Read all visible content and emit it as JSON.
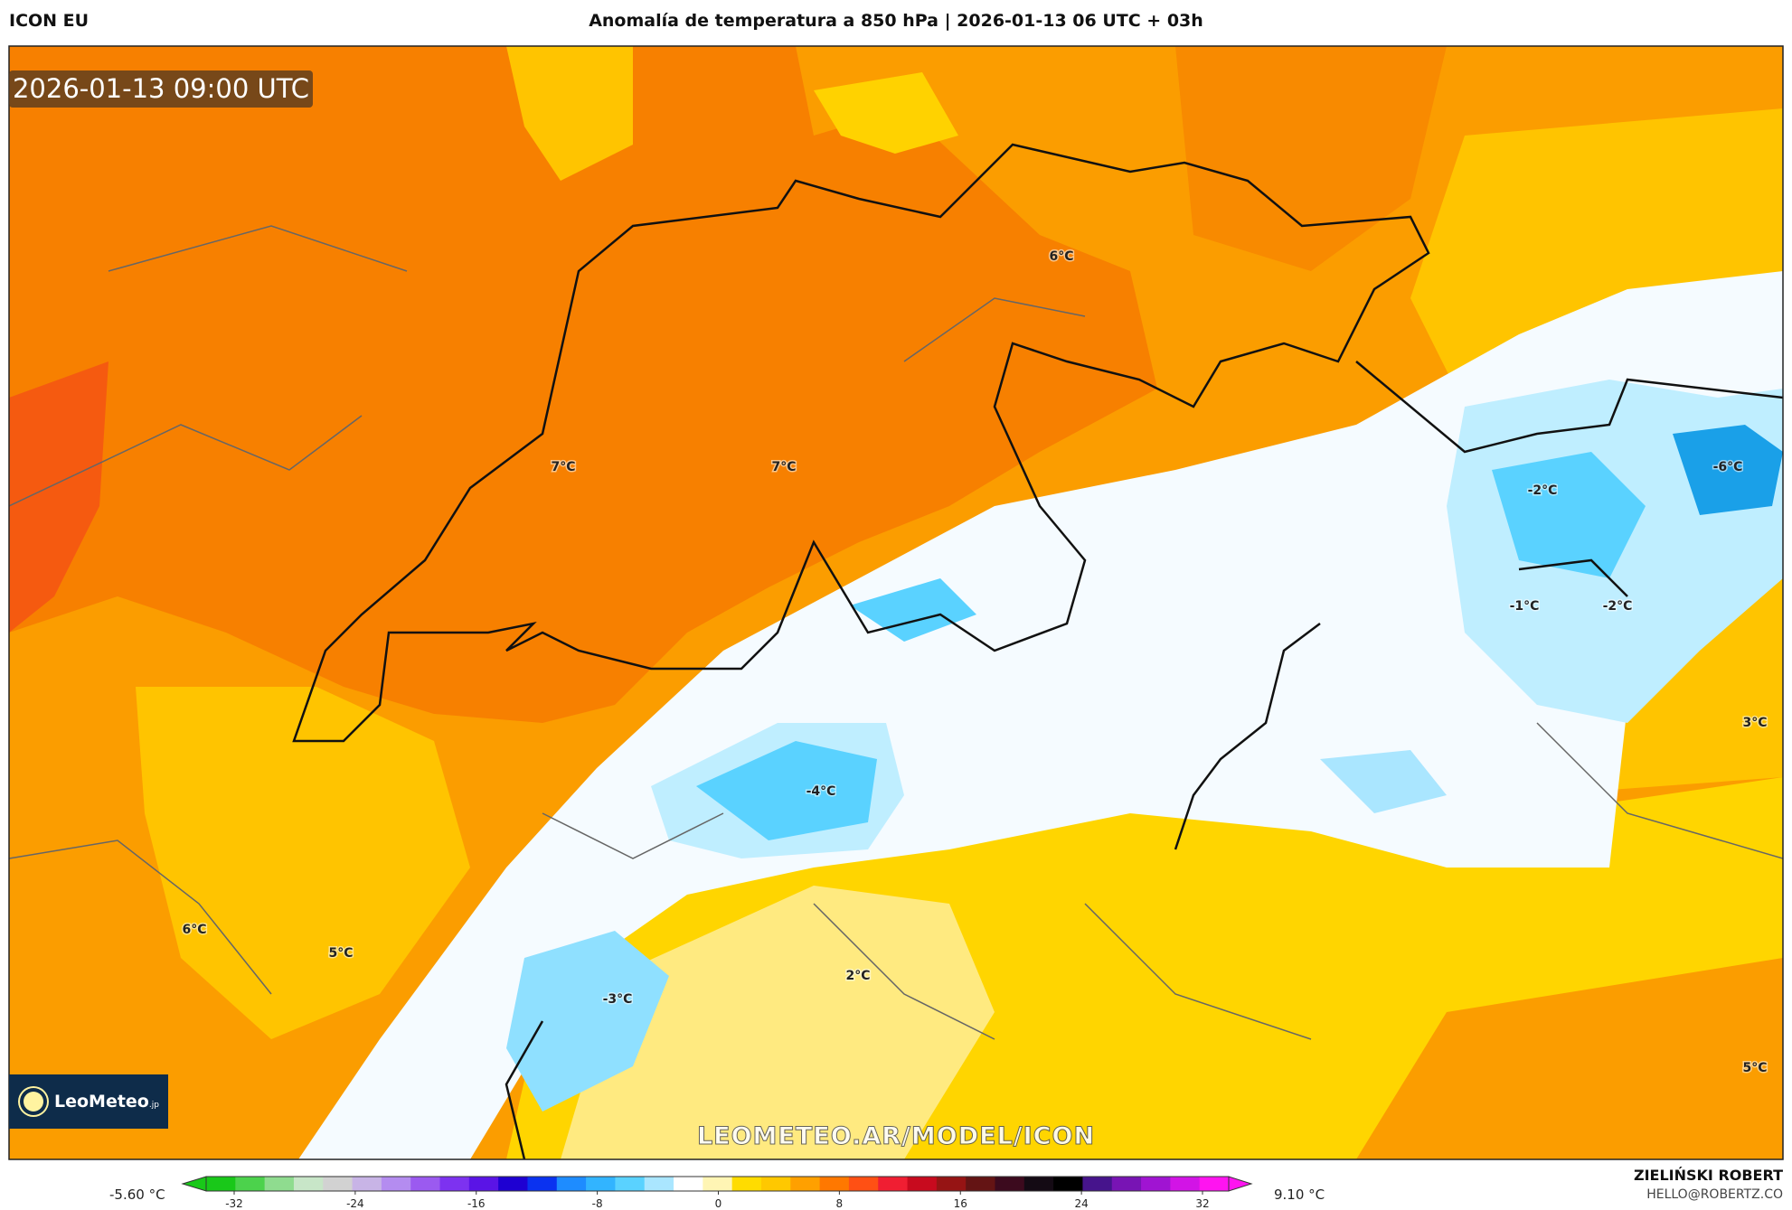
{
  "header": {
    "model": "ICON EU",
    "title": "Anomalía de temperatura a 850 hPa | 2026-01-13 06 UTC + 03h"
  },
  "map": {
    "valid_time": "2026-01-13 09:00 UTC",
    "watermark": "LEOMETEO.AR/MODEL/ICON",
    "logo": {
      "name": "LeoMeteo",
      "suffix": ".jp"
    },
    "temperature_labels": [
      "6°C",
      "7°C",
      "7°C",
      "-6°C",
      "-2°C",
      "-1°C",
      "-2°C",
      "3°C",
      "-4°C",
      "6°C",
      "5°C",
      "2°C",
      "-3°C",
      "5°C"
    ]
  },
  "colorbar": {
    "min_label": "-5.60 °C",
    "max_label": "9.10 °C",
    "ticks": [
      "-32",
      "-24",
      "-16",
      "-8",
      "0",
      "8",
      "16",
      "24",
      "32"
    ],
    "colors": [
      "#19c819",
      "#4cd24c",
      "#8fdc8f",
      "#c8e6c8",
      "#d2d2d2",
      "#c8b4e6",
      "#b48cf0",
      "#9b5af0",
      "#7d32f0",
      "#5a14e6",
      "#1e00d2",
      "#0a32f0",
      "#1e8cff",
      "#32b4ff",
      "#5ad2ff",
      "#aae6ff",
      "#ffffff",
      "#fff5b4",
      "#ffdc00",
      "#ffc800",
      "#ffa000",
      "#ff7800",
      "#ff5014",
      "#f01e32",
      "#c80a1e",
      "#961414",
      "#641414",
      "#3c0a1e",
      "#140a14",
      "#000000",
      "#46148c",
      "#7814b4",
      "#a014d2",
      "#d214e6",
      "#ff14f0"
    ]
  },
  "credits": {
    "author": "ZIELIŃSKI ROBERT",
    "email": "HELLO@ROBERTZ.CO"
  },
  "colors": {
    "warm": "#f78000",
    "hot": "#f55a10",
    "neutral": "#ffffff",
    "cold": "#5ad2ff",
    "very_cold": "#1aa0e8"
  }
}
